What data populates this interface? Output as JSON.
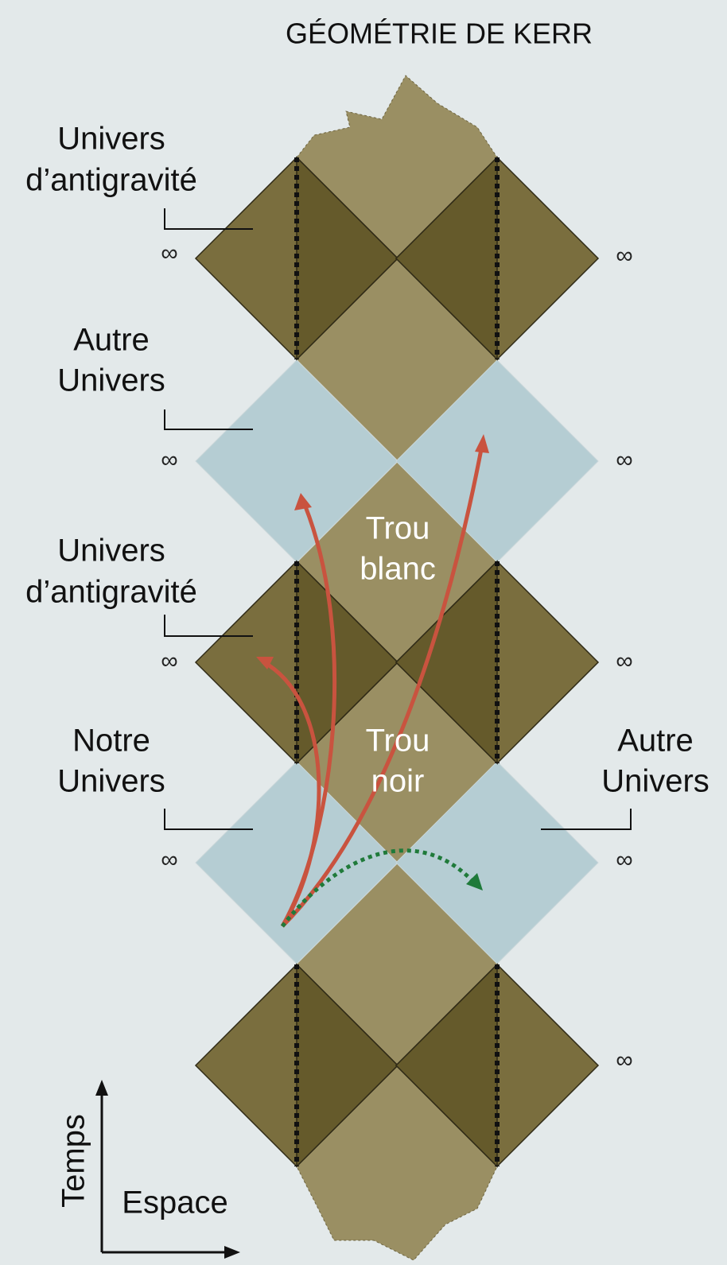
{
  "title": "GÉOMÉTRIE DE KERR",
  "labels": [
    {
      "lines": [
        "Univers",
        "d’antigravité"
      ]
    },
    {
      "lines": [
        "Autre",
        "Univers"
      ]
    },
    {
      "lines": [
        "Univers",
        "d’antigravité"
      ]
    },
    {
      "lines": [
        "Notre",
        "Univers"
      ]
    },
    {
      "lines": [
        "Autre",
        "Univers"
      ]
    }
  ],
  "regions": {
    "white_hole": [
      "Trou",
      "blanc"
    ],
    "black_hole": [
      "Trou",
      "noir"
    ]
  },
  "infinity": [
    "∞",
    "∞",
    "∞",
    "∞",
    "∞",
    "∞",
    "∞",
    "∞",
    "∞"
  ],
  "axes": {
    "time": "Temps",
    "space": "Espace"
  }
}
